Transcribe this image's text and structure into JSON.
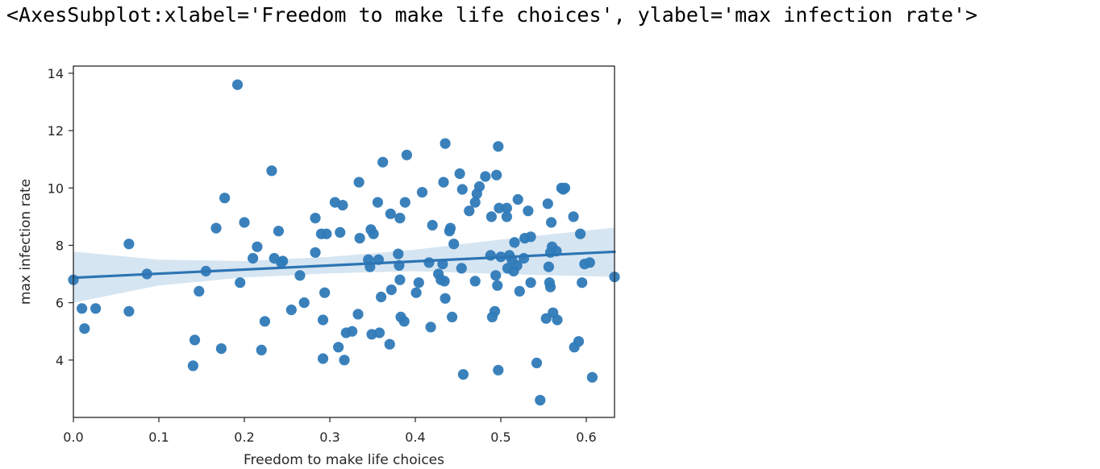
{
  "output_text": "<AxesSubplot:xlabel='Freedom to make life choices', ylabel='max infection rate'>",
  "colors": {
    "point": "#2f7ab8",
    "line": "#2c74b3",
    "band": "#cfe1f0",
    "axis": "#262626"
  },
  "chart_data": {
    "type": "scatter",
    "xlabel": "Freedom to make life choices",
    "ylabel": "max infection rate",
    "xlim": [
      0,
      0.633
    ],
    "ylim": [
      2.0,
      14.25
    ],
    "xticks": [
      0.0,
      0.1,
      0.2,
      0.3,
      0.4,
      0.5,
      0.6
    ],
    "xtick_labels": [
      "0.0",
      "0.1",
      "0.2",
      "0.3",
      "0.4",
      "0.5",
      "0.6"
    ],
    "yticks": [
      4,
      6,
      8,
      10,
      12,
      14
    ],
    "ytick_labels": [
      "4",
      "6",
      "8",
      "10",
      "12",
      "14"
    ],
    "grid": false,
    "regression": {
      "intercept": 6.87,
      "slope": 1.43
    },
    "confidence_band": {
      "x": [
        0.0,
        0.1,
        0.2,
        0.3,
        0.4,
        0.5,
        0.633
      ],
      "lower": [
        6.0,
        6.6,
        6.88,
        7.02,
        7.1,
        7.0,
        6.9
      ],
      "upper": [
        7.78,
        7.5,
        7.45,
        7.6,
        7.85,
        8.2,
        8.62
      ]
    },
    "points": [
      [
        0.0,
        6.8
      ],
      [
        0.01,
        5.8
      ],
      [
        0.013,
        5.1
      ],
      [
        0.026,
        5.8
      ],
      [
        0.065,
        8.05
      ],
      [
        0.065,
        5.7
      ],
      [
        0.086,
        7.0
      ],
      [
        0.14,
        3.8
      ],
      [
        0.142,
        4.7
      ],
      [
        0.147,
        6.4
      ],
      [
        0.155,
        7.1
      ],
      [
        0.167,
        8.6
      ],
      [
        0.173,
        4.4
      ],
      [
        0.177,
        9.65
      ],
      [
        0.192,
        13.6
      ],
      [
        0.195,
        6.7
      ],
      [
        0.2,
        8.8
      ],
      [
        0.21,
        7.55
      ],
      [
        0.215,
        7.95
      ],
      [
        0.22,
        4.35
      ],
      [
        0.224,
        5.35
      ],
      [
        0.232,
        10.6
      ],
      [
        0.235,
        7.55
      ],
      [
        0.24,
        8.5
      ],
      [
        0.243,
        7.4
      ],
      [
        0.245,
        7.45
      ],
      [
        0.255,
        5.75
      ],
      [
        0.265,
        6.95
      ],
      [
        0.27,
        6.0
      ],
      [
        0.283,
        8.95
      ],
      [
        0.283,
        7.75
      ],
      [
        0.29,
        8.4
      ],
      [
        0.292,
        5.4
      ],
      [
        0.292,
        4.05
      ],
      [
        0.294,
        6.35
      ],
      [
        0.296,
        8.4
      ],
      [
        0.306,
        9.5
      ],
      [
        0.31,
        4.45
      ],
      [
        0.312,
        8.45
      ],
      [
        0.315,
        9.4
      ],
      [
        0.317,
        4.0
      ],
      [
        0.319,
        4.95
      ],
      [
        0.326,
        5.0
      ],
      [
        0.333,
        5.6
      ],
      [
        0.334,
        10.2
      ],
      [
        0.335,
        8.25
      ],
      [
        0.345,
        7.5
      ],
      [
        0.347,
        7.25
      ],
      [
        0.348,
        8.55
      ],
      [
        0.349,
        4.9
      ],
      [
        0.351,
        8.4
      ],
      [
        0.356,
        9.5
      ],
      [
        0.357,
        7.5
      ],
      [
        0.358,
        4.95
      ],
      [
        0.36,
        6.2
      ],
      [
        0.362,
        10.9
      ],
      [
        0.37,
        4.55
      ],
      [
        0.371,
        9.1
      ],
      [
        0.372,
        6.45
      ],
      [
        0.38,
        7.7
      ],
      [
        0.381,
        7.3
      ],
      [
        0.382,
        8.95
      ],
      [
        0.382,
        6.8
      ],
      [
        0.383,
        5.5
      ],
      [
        0.387,
        5.35
      ],
      [
        0.388,
        9.5
      ],
      [
        0.39,
        11.15
      ],
      [
        0.401,
        6.35
      ],
      [
        0.404,
        6.7
      ],
      [
        0.408,
        9.85
      ],
      [
        0.416,
        7.4
      ],
      [
        0.418,
        5.15
      ],
      [
        0.42,
        8.7
      ],
      [
        0.427,
        7.0
      ],
      [
        0.43,
        6.8
      ],
      [
        0.432,
        7.35
      ],
      [
        0.433,
        10.2
      ],
      [
        0.434,
        6.75
      ],
      [
        0.435,
        11.55
      ],
      [
        0.435,
        6.15
      ],
      [
        0.44,
        8.5
      ],
      [
        0.441,
        8.6
      ],
      [
        0.443,
        5.5
      ],
      [
        0.445,
        8.05
      ],
      [
        0.452,
        10.5
      ],
      [
        0.454,
        7.2
      ],
      [
        0.455,
        9.95
      ],
      [
        0.456,
        3.5
      ],
      [
        0.463,
        9.2
      ],
      [
        0.47,
        9.5
      ],
      [
        0.47,
        6.75
      ],
      [
        0.472,
        9.8
      ],
      [
        0.475,
        10.05
      ],
      [
        0.482,
        10.4
      ],
      [
        0.488,
        7.65
      ],
      [
        0.489,
        9.0
      ],
      [
        0.49,
        5.5
      ],
      [
        0.493,
        5.7
      ],
      [
        0.494,
        6.95
      ],
      [
        0.495,
        10.45
      ],
      [
        0.496,
        6.6
      ],
      [
        0.497,
        11.45
      ],
      [
        0.497,
        3.65
      ],
      [
        0.498,
        9.3
      ],
      [
        0.5,
        7.6
      ],
      [
        0.507,
        9.3
      ],
      [
        0.507,
        9.0
      ],
      [
        0.508,
        7.2
      ],
      [
        0.51,
        7.65
      ],
      [
        0.513,
        7.5
      ],
      [
        0.515,
        7.1
      ],
      [
        0.516,
        8.1
      ],
      [
        0.519,
        7.3
      ],
      [
        0.52,
        9.6
      ],
      [
        0.522,
        6.4
      ],
      [
        0.527,
        7.55
      ],
      [
        0.528,
        8.25
      ],
      [
        0.532,
        9.2
      ],
      [
        0.535,
        6.7
      ],
      [
        0.535,
        8.3
      ],
      [
        0.542,
        3.9
      ],
      [
        0.546,
        2.6
      ],
      [
        0.553,
        5.45
      ],
      [
        0.555,
        9.45
      ],
      [
        0.556,
        7.25
      ],
      [
        0.557,
        6.7
      ],
      [
        0.558,
        6.55
      ],
      [
        0.558,
        7.75
      ],
      [
        0.559,
        8.8
      ],
      [
        0.56,
        7.95
      ],
      [
        0.561,
        5.65
      ],
      [
        0.565,
        7.8
      ],
      [
        0.566,
        5.4
      ],
      [
        0.571,
        10.0
      ],
      [
        0.573,
        9.95
      ],
      [
        0.575,
        10.0
      ],
      [
        0.585,
        9.0
      ],
      [
        0.586,
        4.45
      ],
      [
        0.591,
        4.65
      ],
      [
        0.593,
        8.4
      ],
      [
        0.595,
        6.7
      ],
      [
        0.598,
        7.35
      ],
      [
        0.604,
        7.4
      ],
      [
        0.607,
        3.4
      ],
      [
        0.633,
        6.9
      ]
    ]
  }
}
